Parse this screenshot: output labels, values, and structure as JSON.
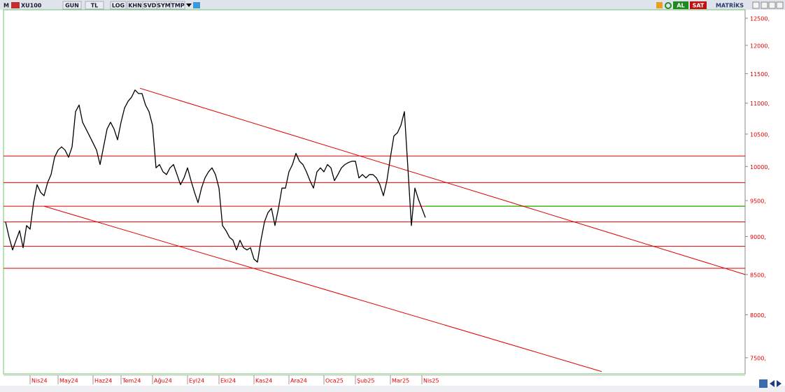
{
  "toolbar": {
    "logo": "M",
    "symbol": "XU100",
    "buttons": [
      "GUN",
      "TL",
      "LOG",
      "KHN",
      "SVD",
      "SYM",
      "TMP"
    ],
    "buy": "AL",
    "sell": "SAT",
    "brand": "MATRİKS"
  },
  "chart_data": {
    "type": "line",
    "log_scale": true,
    "grid": false,
    "color": "#e00000",
    "categories": [
      null,
      null,
      null,
      null,
      null,
      null,
      null,
      "Nis24",
      null,
      null,
      null,
      null,
      null,
      null,
      null,
      "May24",
      null,
      null,
      null,
      null,
      null,
      null,
      null,
      null,
      null,
      "Haz24",
      null,
      null,
      null,
      null,
      null,
      null,
      null,
      "Tem24",
      null,
      null,
      null,
      null,
      null,
      null,
      null,
      null,
      "Ağu24",
      null,
      null,
      null,
      null,
      null,
      null,
      null,
      null,
      null,
      "Eyl24",
      null,
      null,
      null,
      null,
      null,
      null,
      null,
      null,
      "Eki24",
      null,
      null,
      null,
      null,
      null,
      null,
      null,
      null,
      null,
      "Kas24",
      null,
      null,
      null,
      null,
      null,
      null,
      null,
      null,
      null,
      "Ara24",
      null,
      null,
      null,
      null,
      null,
      null,
      null,
      null,
      null,
      "Oca25",
      null,
      null,
      null,
      null,
      null,
      null,
      null,
      null,
      "Şub25",
      null,
      null,
      null,
      null,
      null,
      null,
      null,
      null,
      null,
      "Mar25",
      null,
      null,
      null,
      null,
      null,
      null,
      null,
      null,
      "Nis25",
      null
    ],
    "series": [
      {
        "name": "XU100",
        "color": "#000000",
        "values": [
          9200,
          8990,
          8820,
          8950,
          9080,
          8850,
          9150,
          9100,
          9470,
          9730,
          9620,
          9570,
          9760,
          9880,
          10140,
          10250,
          10300,
          10250,
          10140,
          10300,
          10860,
          10970,
          10690,
          10580,
          10470,
          10360,
          10250,
          10030,
          10300,
          10580,
          10690,
          10580,
          10410,
          10690,
          10920,
          11030,
          11100,
          11220,
          11160,
          11160,
          10970,
          10860,
          10640,
          9980,
          10030,
          9920,
          9880,
          9980,
          10030,
          9880,
          9730,
          9830,
          9980,
          9790,
          9620,
          9470,
          9680,
          9830,
          9920,
          9980,
          9880,
          9680,
          9150,
          9080,
          8990,
          8950,
          8820,
          8950,
          8850,
          8820,
          8850,
          8700,
          8660,
          8950,
          9200,
          9330,
          9390,
          9150,
          9390,
          9680,
          9680,
          9920,
          10030,
          10200,
          10080,
          10030,
          9920,
          9790,
          9680,
          9920,
          9980,
          9920,
          10030,
          9980,
          9790,
          9880,
          9980,
          10030,
          10060,
          10080,
          10080,
          9830,
          9880,
          9830,
          9880,
          9880,
          9830,
          9730,
          9570,
          9790,
          10140,
          10470,
          10520,
          10640,
          10860,
          9980,
          9150,
          9680,
          9520,
          9390,
          9260
        ]
      }
    ],
    "levels": [
      10160,
      9760,
      9420,
      9200,
      8870,
      8580
    ],
    "support_line": {
      "value": 9420,
      "from": 120,
      "color": "#44bb22"
    },
    "trendlines": [
      {
        "x": [
          38.4,
          211.4
        ],
        "values": [
          11250,
          8500
        ]
      },
      {
        "x": [
          11,
          170.4
        ],
        "values": [
          9420,
          7345
        ]
      }
    ],
    "ylim": [
      7320,
      12660
    ],
    "yticks": [
      {
        "value": 7500,
        "label": "7500,"
      },
      {
        "value": 8000,
        "label": "8000,"
      },
      {
        "value": 8500,
        "label": "8500,"
      },
      {
        "value": 9000,
        "label": "9000,"
      },
      {
        "value": 9500,
        "label": "9500,"
      },
      {
        "value": 10000,
        "label": "10000,"
      },
      {
        "value": 10500,
        "label": "10500,"
      },
      {
        "value": 11000,
        "label": "11000,"
      },
      {
        "value": 11500,
        "label": "11500,"
      },
      {
        "value": 12000,
        "label": "12000,"
      },
      {
        "value": 12500,
        "label": "12500,"
      }
    ]
  }
}
